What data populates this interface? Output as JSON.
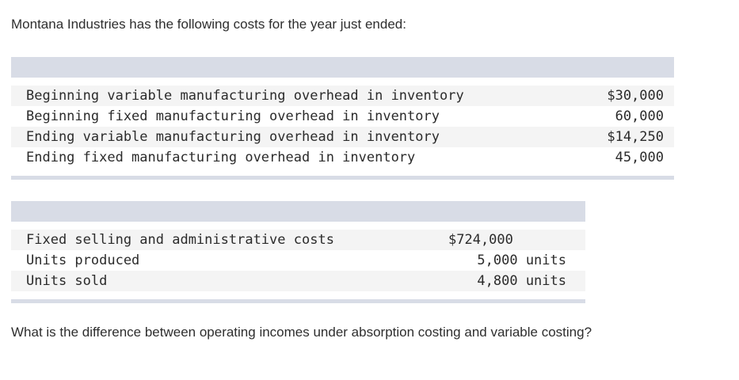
{
  "intro_text": "Montana Industries has the following costs for the year just ended:",
  "overhead_table": {
    "rows": [
      {
        "label": "Beginning variable manufacturing overhead in inventory",
        "value": "$30,000"
      },
      {
        "label": "Beginning fixed manufacturing overhead in inventory",
        "value": "60,000"
      },
      {
        "label": "Ending variable manufacturing overhead in inventory",
        "value": "$14,250"
      },
      {
        "label": "Ending fixed manufacturing overhead in inventory",
        "value": "45,000"
      }
    ]
  },
  "other_table": {
    "rows": [
      {
        "label": "Fixed selling and administrative costs",
        "value": "$724,000"
      },
      {
        "label": "Units produced",
        "value": "5,000 units"
      },
      {
        "label": "Units sold",
        "value": "4,800 units"
      }
    ]
  },
  "question_text": "What is the difference between operating incomes under absorption costing and variable costing?",
  "colors": {
    "header_band": "#d8dce6",
    "row_shade": "#f4f4f4",
    "text": "#2e2e2e"
  }
}
